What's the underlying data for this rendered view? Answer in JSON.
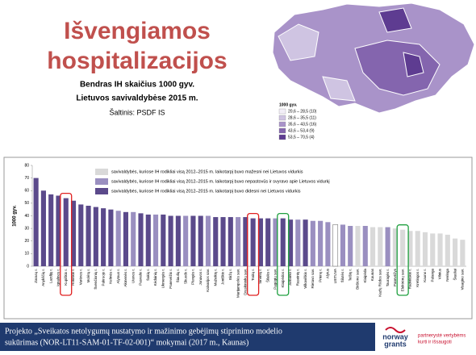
{
  "header": {
    "title_lines": [
      "Išvengiamos",
      "hospitalizacijos"
    ],
    "subtitle_lines": [
      "Bendras IH skaičius 1000 gyv.",
      "Lietuvos savivaldybėse 2015 m."
    ],
    "source": "Šaltinis: PSDF IS"
  },
  "map": {
    "legend_title": "1000 gyv.",
    "legend": [
      {
        "label": "20,6 – 28,5 (10)",
        "color": "#f2eef7"
      },
      {
        "label": "28,6 – 35,5 (11)",
        "color": "#cfc4e2"
      },
      {
        "label": "35,6 – 43,5 (16)",
        "color": "#a993c9"
      },
      {
        "label": "43,6 – 53,4 (9)",
        "color": "#8465ae"
      },
      {
        "label": "53,5 – 70,5 (4)",
        "color": "#5e3c91"
      }
    ]
  },
  "chart_data": {
    "type": "bar",
    "ylabel": "1000 gyv.",
    "ylim": [
      0,
      80
    ],
    "yticks": [
      0,
      10,
      20,
      30,
      40,
      50,
      60,
      70,
      80
    ],
    "categories": [
      "Zarasų r.",
      "Anykščių r.",
      "Lazdijų r.",
      "Ignalinos r.",
      "Kupiškio r.",
      "Rokiškio r.",
      "Varėnos r.",
      "Molėtų r.",
      "Švenčionių r.",
      "Pakruojo r.",
      "Kelmės r.",
      "Alytaus r.",
      "Akmenės r.",
      "Utenos r.",
      "Pasvalio r.",
      "Šakių r.",
      "Kėdainių r.",
      "Ukmergės r.",
      "Panevėžio r.",
      "Šiaulių r.",
      "Skuodo r.",
      "Plungės r.",
      "Jonavos r.",
      "Kalvarijos sav.",
      "Mažeikių r.",
      "Joniškio r.",
      "Biržų r.",
      "Marijampolės sav.",
      "Druskininkų sav.",
      "Trakų r.",
      "Širvintų r.",
      "Šilalės r.",
      "Pagėgių sav.",
      "Klaipėdos r.",
      "Jurbarko r.",
      "Raseinių r.",
      "Vilkaviškio r.",
      "Rietavo sav.",
      "Prienų r.",
      "Alytus",
      "LIETUVA",
      "Šilutės r.",
      "Telšių r.",
      "Birštono sav.",
      "Klaipėda",
      "Kaunas",
      "Kazlų Rūdos sav.",
      "Tauragės r.",
      "Panevėžys",
      "Elektrėnų sav.",
      "Radviliškio r.",
      "Kretingos r.",
      "Kauno r.",
      "Palanga",
      "Vilnius",
      "Neringa",
      "Šiauliai",
      "Visagino sav."
    ],
    "values": [
      70,
      60,
      57,
      56,
      54,
      52,
      49,
      48,
      47,
      46,
      45,
      44,
      43,
      43,
      42,
      41,
      41,
      41,
      40,
      40,
      40,
      40,
      40,
      40,
      39,
      39,
      39,
      39,
      39,
      38,
      38,
      38,
      38,
      38,
      37,
      37,
      37,
      36,
      36,
      35,
      33,
      33,
      32,
      32,
      32,
      31,
      31,
      31,
      30,
      29,
      28,
      28,
      27,
      26,
      26,
      25,
      22,
      21
    ],
    "groups": [
      2,
      2,
      2,
      2,
      2,
      2,
      2,
      2,
      2,
      2,
      2,
      1,
      2,
      1,
      2,
      2,
      1,
      2,
      2,
      2,
      1,
      2,
      2,
      1,
      2,
      2,
      2,
      1,
      2,
      2,
      2,
      2,
      1,
      2,
      2,
      1,
      2,
      1,
      1,
      1,
      null,
      1,
      1,
      0,
      1,
      0,
      0,
      1,
      0,
      0,
      0,
      0,
      0,
      0,
      0,
      0,
      0,
      0
    ],
    "legend": [
      {
        "label": "savivaldybės, kuriose IH rodikliai visą 2012–2015 m. laikotarpį buvo mažesni nei Lietuvos vidurkis",
        "color": "#d9d9d9"
      },
      {
        "label": "savivaldybės, kuriose IH rodikliai visą 2012–2015 m. laikotarpį buvo nepastovūs ir svyravo apie Lietuvos vidurkį",
        "color": "#9a8fc0"
      },
      {
        "label": "savivaldybės, kuriose IH rodikliai visą 2012–2015 m. laikotarpį buvo didesni nei Lietuvos vidurkis",
        "color": "#5b4a8b"
      }
    ],
    "highlights": [
      {
        "category": 4,
        "color": "#e02020"
      },
      {
        "category": 29,
        "color": "#e02020"
      },
      {
        "category": 33,
        "color": "#20a040"
      },
      {
        "category": 49,
        "color": "#20a040"
      }
    ]
  },
  "footer": {
    "lines": [
      "Projekto „Sveikatos netolygumų nustatymo ir mažinimo gebėjimų stiprinimo modelio",
      "sukūrimas (NOR-LT11-SAM-01-TF-02-001)“ mokymai (2017 m., Kaunas)"
    ],
    "logo": [
      "norway",
      "grants"
    ],
    "tagline": [
      "partnerystė vertybėms",
      "kurti ir išsaugoti"
    ]
  }
}
